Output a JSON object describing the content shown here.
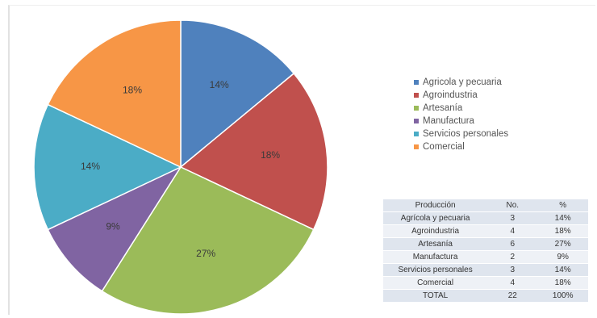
{
  "chart_data": {
    "type": "pie",
    "slices": [
      {
        "label": "Agrícola y pecuaria",
        "value": 14,
        "value_label": "14%",
        "color": "#4f81bd"
      },
      {
        "label": "Agroindustria",
        "value": 18,
        "value_label": "18%",
        "color": "#c0504d"
      },
      {
        "label": "Artesanía",
        "value": 27,
        "value_label": "27%",
        "color": "#9bbb59"
      },
      {
        "label": "Manufactura",
        "value": 9,
        "value_label": "9%",
        "color": "#8064a2"
      },
      {
        "label": "Servicios personales",
        "value": 14,
        "value_label": "14%",
        "color": "#4bacc6"
      },
      {
        "label": "Comercial",
        "value": 18,
        "value_label": "18%",
        "color": "#f79646"
      }
    ],
    "legend_position": "right"
  },
  "legend": [
    {
      "label": "Agricola y pecuaria",
      "color": "#4f81bd"
    },
    {
      "label": "Agroindustria",
      "color": "#c0504d"
    },
    {
      "label": "Artesanía",
      "color": "#9bbb59"
    },
    {
      "label": "Manufactura",
      "color": "#8064a2"
    },
    {
      "label": "Servicios personales",
      "color": "#4bacc6"
    },
    {
      "label": "Comercial",
      "color": "#f79646"
    }
  ],
  "table": {
    "headers": [
      "Producción",
      "No.",
      "%"
    ],
    "rows": [
      [
        "Agrícola y pecuaria",
        "3",
        "14%"
      ],
      [
        "Agroindustria",
        "4",
        "18%"
      ],
      [
        "Artesanía",
        "6",
        "27%"
      ],
      [
        "Manufactura",
        "2",
        "9%"
      ],
      [
        "Servicios personales",
        "3",
        "14%"
      ],
      [
        "Comercial",
        "4",
        "18%"
      ],
      [
        "TOTAL",
        "22",
        "100%"
      ]
    ]
  }
}
